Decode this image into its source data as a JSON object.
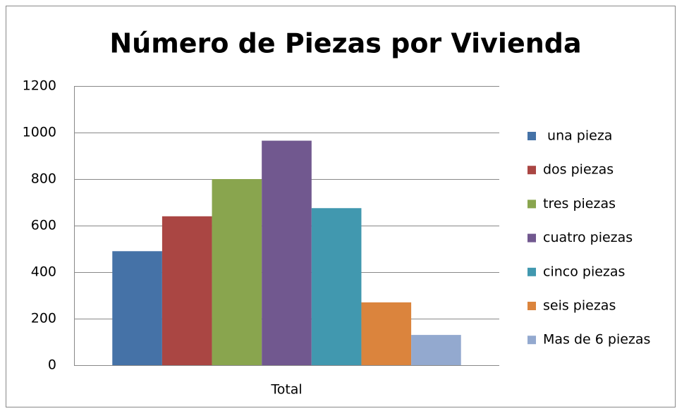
{
  "chart_data": {
    "type": "bar",
    "title": "Número de Piezas por Vivienda",
    "categories": [
      "Total"
    ],
    "series": [
      {
        "name": " una pieza",
        "color": "#4572a7",
        "values": [
          490
        ]
      },
      {
        "name": "dos piezas",
        "color": "#aa4643",
        "values": [
          640
        ]
      },
      {
        "name": "tres piezas",
        "color": "#89a54e",
        "values": [
          800
        ]
      },
      {
        "name": "cuatro piezas",
        "color": "#71588f",
        "values": [
          965
        ]
      },
      {
        "name": "cinco piezas",
        "color": "#4198af",
        "values": [
          675
        ]
      },
      {
        "name": "seis piezas",
        "color": "#db843d",
        "values": [
          270
        ]
      },
      {
        "name": "Mas de 6 piezas",
        "color": "#93a9cf",
        "values": [
          130
        ]
      }
    ],
    "ylim": [
      0,
      1200
    ],
    "yticks": [
      0,
      200,
      400,
      600,
      800,
      1000,
      1200
    ],
    "grid": true,
    "legend": "right"
  }
}
